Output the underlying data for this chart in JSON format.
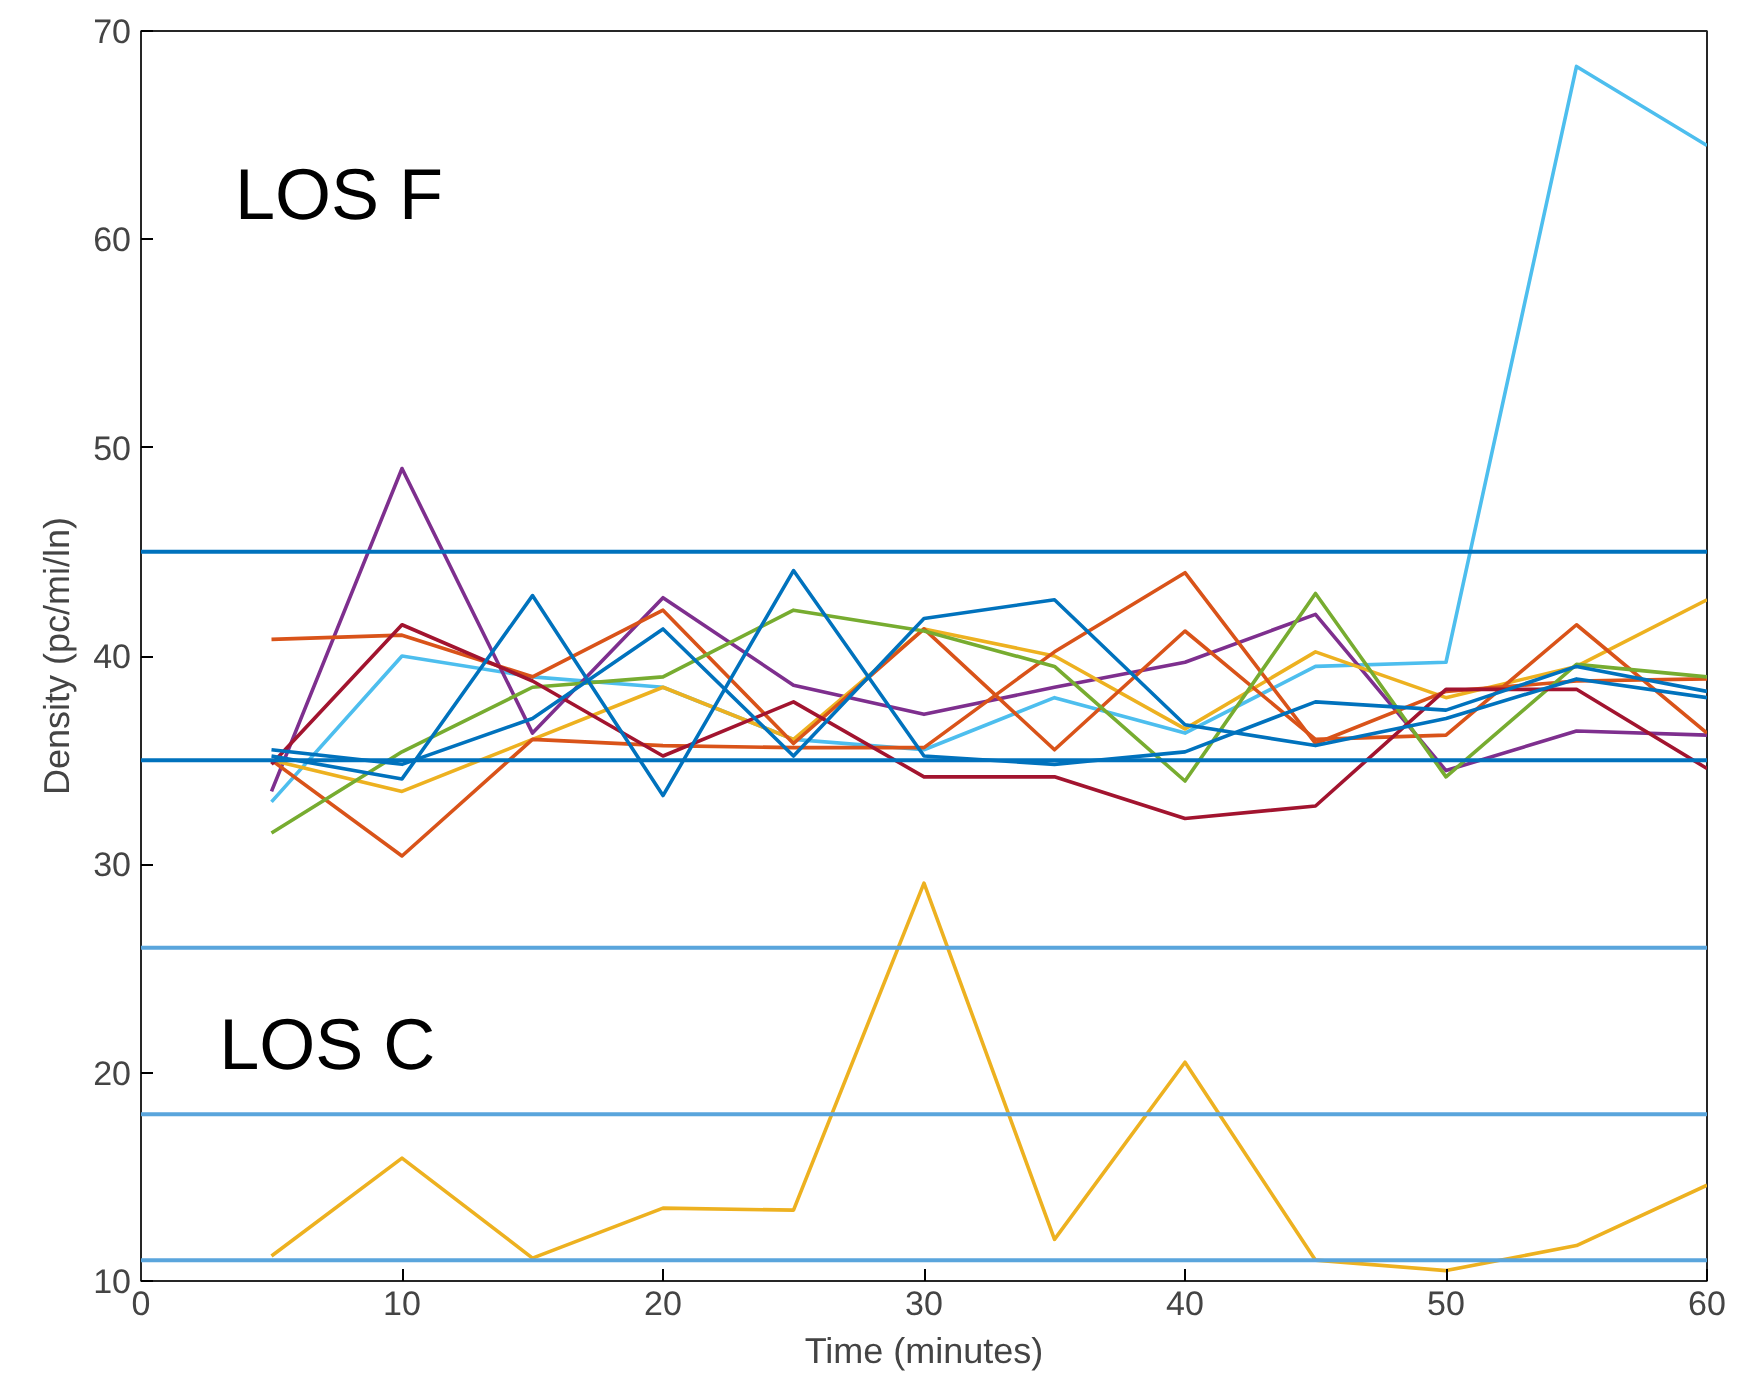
{
  "chart_data": {
    "type": "line",
    "xlabel": "Time (minutes)",
    "ylabel": "Density (pc/mi/ln)",
    "x": [
      5,
      10,
      15,
      20,
      25,
      30,
      35,
      40,
      45,
      50,
      55,
      60
    ],
    "xlim": [
      0,
      60
    ],
    "xticks": [
      0,
      10,
      20,
      30,
      40,
      50,
      60
    ],
    "ylim": [
      10,
      70
    ],
    "yticks": [
      10,
      20,
      30,
      40,
      50,
      60,
      70
    ],
    "grid": false,
    "line_style": "solid",
    "marker": "none",
    "series": [
      {
        "color": "#4dbeee",
        "values": [
          33,
          40,
          39,
          38.5,
          36,
          35.5,
          38,
          36.3,
          39.5,
          39.7,
          68.3,
          64.5
        ]
      },
      {
        "color": "#7e2f8e",
        "values": [
          33.5,
          49,
          36.3,
          42.8,
          38.6,
          37.2,
          38.5,
          39.7,
          42,
          34.5,
          36.4,
          36.2
        ]
      },
      {
        "color": "#edb120",
        "values": [
          11.2,
          15.9,
          11.1,
          13.5,
          13.4,
          29.1,
          12,
          20.5,
          11,
          10.5,
          11.7,
          14.6
        ]
      },
      {
        "color": "#edb120",
        "values": [
          35,
          33.5,
          36,
          38.5,
          36,
          41.3,
          40,
          36.5,
          40.2,
          38,
          39.5,
          42.7
        ]
      },
      {
        "color": "#d95319",
        "values": [
          40.8,
          41,
          39,
          42.2,
          35.8,
          41.3,
          35.5,
          41.2,
          36,
          36.2,
          41.5,
          36.3
        ]
      },
      {
        "color": "#d95319",
        "values": [
          35,
          30.4,
          36,
          35.7,
          35.6,
          35.6,
          40.2,
          44,
          35.8,
          38.3,
          38.8,
          38.9
        ]
      },
      {
        "color": "#77ac30",
        "values": [
          31.5,
          35.4,
          38.5,
          39,
          42.2,
          41.2,
          39.5,
          34,
          43,
          34.2,
          39.6,
          39
        ]
      },
      {
        "color": "#a2142f",
        "values": [
          34.8,
          41.5,
          38.8,
          35.2,
          37.8,
          34.2,
          34.2,
          32.2,
          32.8,
          38.4,
          38.4,
          34.6
        ]
      },
      {
        "color": "#0072bd",
        "values": [
          35.2,
          34.1,
          42.9,
          33.3,
          44.1,
          35.2,
          34.8,
          35.4,
          37.8,
          37.4,
          39.5,
          38.3
        ]
      },
      {
        "color": "#0072bd",
        "values": [
          35.5,
          34.8,
          37,
          41.3,
          35.2,
          41.8,
          42.7,
          36.7,
          35.7,
          37,
          38.9,
          38
        ]
      }
    ],
    "ref_lines": [
      {
        "axis": "y",
        "value": 45,
        "color": "#0072bd"
      },
      {
        "axis": "y",
        "value": 35,
        "color": "#0072bd"
      },
      {
        "axis": "y",
        "value": 26,
        "color": "#5aa5dc"
      },
      {
        "axis": "y",
        "value": 18,
        "color": "#5aa5dc"
      },
      {
        "axis": "y",
        "value": 11,
        "color": "#5aa5dc"
      }
    ],
    "annotations": [
      "LOS F",
      "LOS C"
    ]
  }
}
